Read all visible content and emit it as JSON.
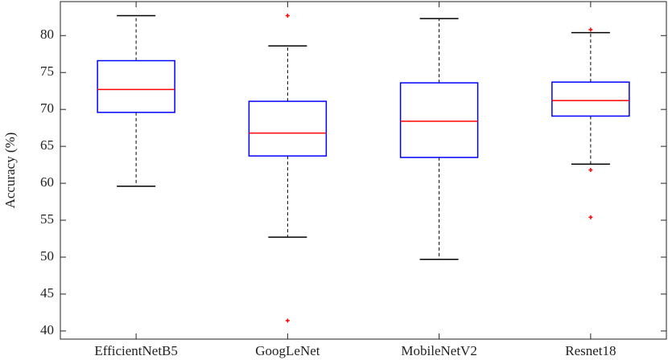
{
  "chart_data": {
    "type": "box",
    "y_label": "Accuracy (%)",
    "categories": [
      "EfficientNetB5",
      "GoogLeNet",
      "MobileNetV2",
      "Resnet18"
    ],
    "boxes": [
      {
        "whisker_low": 59.6,
        "q1": 69.6,
        "median": 72.7,
        "q3": 76.6,
        "whisker_high": 82.7,
        "outliers": []
      },
      {
        "whisker_low": 52.7,
        "q1": 63.7,
        "median": 66.8,
        "q3": 71.1,
        "whisker_high": 78.6,
        "outliers": [
          82.7,
          41.4
        ]
      },
      {
        "whisker_low": 49.7,
        "q1": 63.5,
        "median": 68.4,
        "q3": 73.6,
        "whisker_high": 82.3,
        "outliers": []
      },
      {
        "whisker_low": 62.6,
        "q1": 69.1,
        "median": 71.2,
        "q3": 73.7,
        "whisker_high": 80.4,
        "outliers": [
          80.8,
          61.8,
          55.4
        ]
      }
    ],
    "box_color": "#0000ff",
    "median_color": "#ff0000",
    "whisker_color": "#000000",
    "outlier_color": "#ff0000",
    "ylim": [
      38.9,
      84.6
    ],
    "yticks": [
      40,
      45,
      50,
      55,
      60,
      65,
      70,
      75,
      80
    ]
  }
}
